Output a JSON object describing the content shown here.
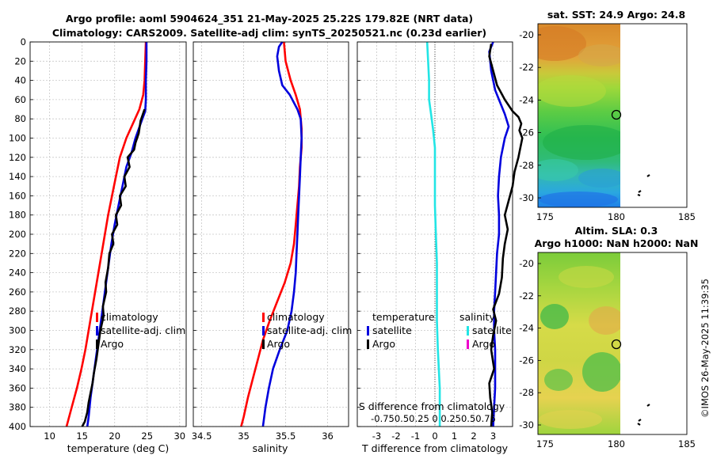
{
  "header": {
    "title_line1": "Argo profile: aoml 5904624_351 21-May-2025 25.22S 179.82E (NRT data)",
    "title_line2": "Climatology: CARS2009. Satellite-adj clim: synTS_20250521.nc (0.23d earlier)"
  },
  "depth_axis": {
    "ylim": [
      0,
      400
    ],
    "ticks": [
      0,
      20,
      40,
      60,
      80,
      100,
      120,
      140,
      160,
      180,
      200,
      220,
      240,
      260,
      280,
      300,
      320,
      340,
      360,
      380,
      400
    ]
  },
  "colors": {
    "climatology": "#ff0000",
    "satellite": "#0000dd",
    "argo": "#000000",
    "salinity_satellite": "#22e5e5",
    "salinity_argo": "#ee00cc"
  },
  "chart_data": [
    {
      "type": "line",
      "name": "temperature-profile",
      "xlabel": "temperature (deg C)",
      "ylabel": "depth",
      "xlim": [
        7,
        31
      ],
      "ylim": [
        0,
        400
      ],
      "xticks": [
        "10",
        "15",
        "20",
        "25",
        "30"
      ],
      "xtick_values": [
        10,
        15,
        20,
        25,
        30
      ],
      "series": [
        {
          "name": "climatology",
          "color": "#ff0000",
          "points": [
            [
              24.8,
              0
            ],
            [
              24.7,
              20
            ],
            [
              24.6,
              40
            ],
            [
              24.4,
              55
            ],
            [
              23.8,
              70
            ],
            [
              22.8,
              85
            ],
            [
              21.8,
              100
            ],
            [
              20.8,
              120
            ],
            [
              20.2,
              140
            ],
            [
              19.6,
              160
            ],
            [
              19.0,
              180
            ],
            [
              18.5,
              200
            ],
            [
              18.0,
              220
            ],
            [
              17.5,
              240
            ],
            [
              17.0,
              260
            ],
            [
              16.5,
              280
            ],
            [
              16.0,
              300
            ],
            [
              15.5,
              320
            ],
            [
              14.9,
              340
            ],
            [
              14.2,
              360
            ],
            [
              13.4,
              380
            ],
            [
              12.6,
              400
            ]
          ]
        },
        {
          "name": "satellite-adj. clim",
          "color": "#0000dd",
          "points": [
            [
              24.9,
              0
            ],
            [
              24.9,
              20
            ],
            [
              24.8,
              40
            ],
            [
              24.8,
              60
            ],
            [
              24.7,
              72
            ],
            [
              24.0,
              85
            ],
            [
              23.2,
              100
            ],
            [
              22.6,
              115
            ],
            [
              21.8,
              130
            ],
            [
              21.2,
              150
            ],
            [
              20.6,
              170
            ],
            [
              20.0,
              190
            ],
            [
              19.5,
              210
            ],
            [
              19.1,
              230
            ],
            [
              18.7,
              250
            ],
            [
              18.3,
              270
            ],
            [
              17.9,
              290
            ],
            [
              17.5,
              310
            ],
            [
              17.1,
              330
            ],
            [
              16.7,
              350
            ],
            [
              16.3,
              370
            ],
            [
              16.0,
              390
            ],
            [
              15.8,
              400
            ]
          ]
        },
        {
          "name": "Argo",
          "color": "#000000",
          "points": [
            [
              24.6,
              70
            ],
            [
              24.0,
              82
            ],
            [
              23.7,
              95
            ],
            [
              23.2,
              105
            ],
            [
              23.0,
              112
            ],
            [
              22.0,
              120
            ],
            [
              22.3,
              130
            ],
            [
              21.5,
              140
            ],
            [
              21.7,
              150
            ],
            [
              20.8,
              160
            ],
            [
              21.0,
              170
            ],
            [
              20.2,
              180
            ],
            [
              20.4,
              190
            ],
            [
              19.6,
              200
            ],
            [
              19.8,
              210
            ],
            [
              19.2,
              220
            ],
            [
              19.0,
              235
            ],
            [
              18.6,
              250
            ],
            [
              18.7,
              260
            ],
            [
              18.2,
              275
            ],
            [
              18.3,
              285
            ],
            [
              17.8,
              300
            ],
            [
              17.5,
              315
            ],
            [
              17.2,
              330
            ],
            [
              16.8,
              345
            ],
            [
              16.6,
              355
            ],
            [
              16.3,
              365
            ],
            [
              16.0,
              375
            ],
            [
              15.8,
              385
            ],
            [
              15.4,
              395
            ],
            [
              15.0,
              400
            ]
          ]
        }
      ]
    },
    {
      "type": "line",
      "name": "salinity-profile",
      "xlabel": "salinity",
      "ylabel": "depth",
      "xlim": [
        34.4,
        36.25
      ],
      "ylim": [
        0,
        400
      ],
      "xticks": [
        "34.5",
        "35",
        "35.5",
        "36"
      ],
      "xtick_values": [
        34.5,
        35,
        35.5,
        36
      ],
      "series": [
        {
          "name": "climatology",
          "color": "#ff0000",
          "points": [
            [
              35.48,
              0
            ],
            [
              35.5,
              20
            ],
            [
              35.56,
              40
            ],
            [
              35.62,
              55
            ],
            [
              35.67,
              70
            ],
            [
              35.69,
              90
            ],
            [
              35.69,
              110
            ],
            [
              35.67,
              130
            ],
            [
              35.66,
              150
            ],
            [
              35.64,
              170
            ],
            [
              35.62,
              190
            ],
            [
              35.6,
              210
            ],
            [
              35.56,
              230
            ],
            [
              35.49,
              250
            ],
            [
              35.4,
              270
            ],
            [
              35.31,
              290
            ],
            [
              35.23,
              310
            ],
            [
              35.17,
              330
            ],
            [
              35.11,
              350
            ],
            [
              35.05,
              370
            ],
            [
              35.0,
              390
            ],
            [
              34.97,
              400
            ]
          ]
        },
        {
          "name": "satellite-adj. clim",
          "color": "#0000dd",
          "points": [
            [
              35.46,
              0
            ],
            [
              35.42,
              5
            ],
            [
              35.4,
              15
            ],
            [
              35.42,
              30
            ],
            [
              35.46,
              45
            ],
            [
              35.55,
              55
            ],
            [
              35.64,
              70
            ],
            [
              35.68,
              80
            ],
            [
              35.69,
              100
            ],
            [
              35.68,
              120
            ],
            [
              35.67,
              140
            ],
            [
              35.66,
              160
            ],
            [
              35.65,
              180
            ],
            [
              35.64,
              200
            ],
            [
              35.63,
              220
            ],
            [
              35.62,
              240
            ],
            [
              35.6,
              260
            ],
            [
              35.57,
              280
            ],
            [
              35.52,
              300
            ],
            [
              35.43,
              320
            ],
            [
              35.35,
              340
            ],
            [
              35.3,
              360
            ],
            [
              35.26,
              380
            ],
            [
              35.23,
              400
            ]
          ]
        }
      ]
    },
    {
      "type": "line",
      "name": "difference-profile",
      "xlabel": "T difference from climatology",
      "x2label": "S difference from climatology",
      "ylabel": "depth",
      "xlim": [
        -4,
        4
      ],
      "ylim": [
        0,
        400
      ],
      "xticks": [
        "-3",
        "-2",
        "-1",
        "0",
        "1",
        "2",
        "3"
      ],
      "xtick_values": [
        -3,
        -2,
        -1,
        0,
        1,
        2,
        3
      ],
      "x2ticks": "-0.750.50.25  0  0.250.50.75",
      "series": [
        {
          "name": "temperature satellite",
          "color": "#0000dd",
          "points": [
            [
              3.0,
              0
            ],
            [
              2.8,
              10
            ],
            [
              2.9,
              30
            ],
            [
              3.1,
              50
            ],
            [
              3.4,
              65
            ],
            [
              3.6,
              75
            ],
            [
              3.8,
              88
            ],
            [
              3.6,
              100
            ],
            [
              3.4,
              120
            ],
            [
              3.3,
              140
            ],
            [
              3.25,
              160
            ],
            [
              3.3,
              180
            ],
            [
              3.3,
              200
            ],
            [
              3.2,
              220
            ],
            [
              3.15,
              240
            ],
            [
              3.1,
              260
            ],
            [
              3.05,
              280
            ],
            [
              3.05,
              300
            ],
            [
              3.1,
              320
            ],
            [
              3.1,
              340
            ],
            [
              3.1,
              360
            ],
            [
              3.05,
              380
            ],
            [
              3.0,
              400
            ]
          ]
        },
        {
          "name": "temperature Argo",
          "color": "#000000",
          "points": [
            [
              2.9,
              2
            ],
            [
              2.8,
              15
            ],
            [
              3.0,
              30
            ],
            [
              3.2,
              45
            ],
            [
              3.6,
              60
            ],
            [
              4.0,
              72
            ],
            [
              4.3,
              78
            ],
            [
              4.45,
              85
            ],
            [
              4.35,
              92
            ],
            [
              4.5,
              100
            ],
            [
              4.4,
              110
            ],
            [
              4.3,
              120
            ],
            [
              4.1,
              135
            ],
            [
              4.0,
              150
            ],
            [
              3.8,
              165
            ],
            [
              3.6,
              180
            ],
            [
              3.75,
              195
            ],
            [
              3.6,
              210
            ],
            [
              3.5,
              225
            ],
            [
              3.45,
              245
            ],
            [
              3.3,
              262
            ],
            [
              3.0,
              278
            ],
            [
              3.15,
              290
            ],
            [
              3.0,
              305
            ],
            [
              2.9,
              320
            ],
            [
              3.05,
              340
            ],
            [
              2.8,
              355
            ],
            [
              2.85,
              370
            ],
            [
              2.95,
              385
            ],
            [
              2.9,
              400
            ]
          ]
        },
        {
          "name": "salinity satellite",
          "color": "#22e5e5",
          "points": [
            [
              -0.4,
              0
            ],
            [
              -0.35,
              20
            ],
            [
              -0.3,
              40
            ],
            [
              -0.3,
              60
            ],
            [
              -0.2,
              75
            ],
            [
              -0.1,
              90
            ],
            [
              0.0,
              110
            ],
            [
              0.0,
              140
            ],
            [
              0.0,
              170
            ],
            [
              0.05,
              200
            ],
            [
              0.1,
              230
            ],
            [
              0.1,
              260
            ],
            [
              0.1,
              290
            ],
            [
              0.15,
              320
            ],
            [
              0.2,
              340
            ],
            [
              0.25,
              360
            ],
            [
              0.25,
              380
            ],
            [
              0.25,
              400
            ]
          ]
        }
      ],
      "zero_line": 0
    }
  ],
  "legends": {
    "temperature": [
      "climatology",
      "satellite-adj. clim",
      "Argo"
    ],
    "salinity": [
      "climatology",
      "satellite-adj. clim",
      "Argo"
    ],
    "difference": {
      "temperature_header": "temperature",
      "salinity_header": "salinity",
      "temperature_items": [
        "satellite",
        "Argo"
      ],
      "salinity_items": [
        "satellite",
        "Argo"
      ]
    }
  },
  "maps": {
    "sst": {
      "title": "sat. SST: 24.9 Argo: 24.8",
      "yticks": [
        "-20",
        "-22",
        "-24",
        "-26",
        "-28",
        "-30"
      ],
      "xticks": [
        "175",
        "180",
        "185"
      ],
      "marker": {
        "lon": 179.82,
        "lat": -25.22
      }
    },
    "sla": {
      "title_line1": "Altim. SLA: 0.3",
      "title_line2": "Argo h1000: NaN h2000: NaN",
      "yticks": [
        "-20",
        "-22",
        "-24",
        "-26",
        "-28",
        "-30"
      ],
      "xticks": [
        "175",
        "180",
        "185"
      ],
      "marker": {
        "lon": 179.82,
        "lat": -25.22
      }
    }
  },
  "credit": "©IMOS 26-May-2025 11:39:35"
}
